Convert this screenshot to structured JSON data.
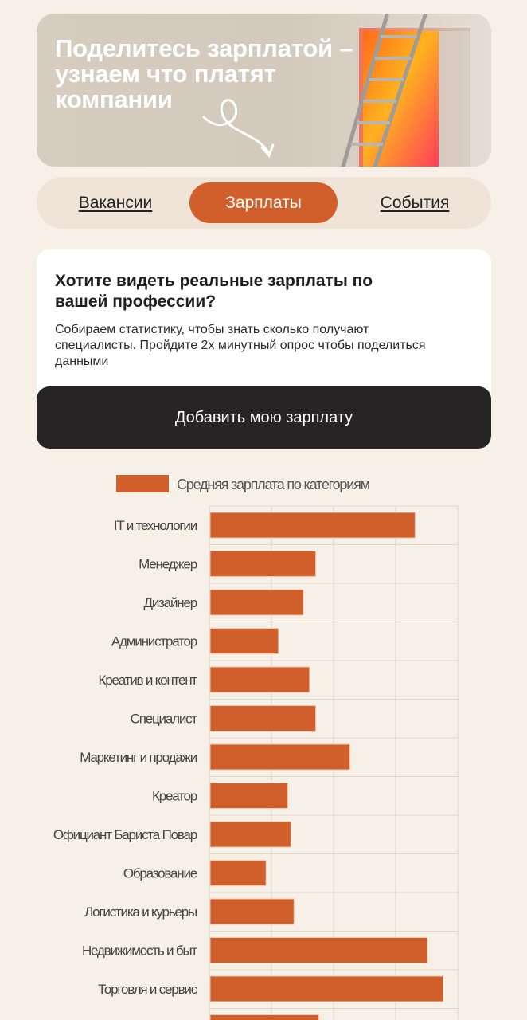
{
  "banner": {
    "title": "Поделитесь зарплатой – узнаем что платят компании"
  },
  "tabs": [
    {
      "label": "Вакансии"
    },
    {
      "label": "Зарплаты"
    },
    {
      "label": "События"
    }
  ],
  "card": {
    "title": "Хотите видеть реальные зарплаты по вашей профессии?",
    "text": "Собираем статистику, чтобы знать сколько получают специалисты. Пройдите 2х минутный опрос чтобы поделиться данными",
    "button_label": "Добавить мою зарплату"
  },
  "chart_data": {
    "type": "bar",
    "orientation": "horizontal",
    "legend": "Средняя зарплата по категориям",
    "legend_placement": "top",
    "color": "#d05f2b",
    "grid": true,
    "categories": [
      "IT и технологии",
      "Менеджер",
      "Дизайнер",
      "Администратор",
      "Креатив и контент",
      "Специалист",
      "Маркетинг и продажи",
      "Креатор",
      "Официант Бариста Повар",
      "Образование",
      "Логистика и курьеры",
      "Недвижимость и быт",
      "Торговля и сервис",
      ""
    ],
    "values": [
      66,
      34,
      30,
      22,
      32,
      34,
      45,
      25,
      26,
      18,
      27,
      70,
      75,
      35
    ],
    "xlim": [
      0,
      80
    ]
  }
}
